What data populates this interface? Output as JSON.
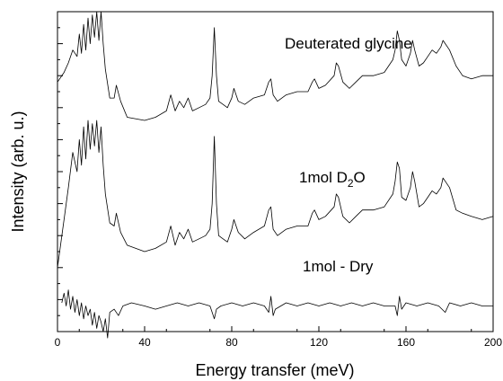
{
  "chart_data": {
    "type": "line",
    "title": "",
    "xlabel": "Energy transfer (meV)",
    "ylabel": "Intensity (arb. u.)",
    "xlim": [
      0,
      200
    ],
    "ylim": [
      0,
      100
    ],
    "xticks": [
      0,
      40,
      80,
      120,
      160,
      200
    ],
    "y_ticks_labeled": false,
    "grid": false,
    "legend": "none",
    "annotations": {
      "top": "Deuterated glycine",
      "middle_prefix": "1mol D",
      "middle_sub": "2",
      "middle_suffix": "O",
      "bottom": "1mol - Dry"
    },
    "series": [
      {
        "x": [
          0,
          3,
          5,
          7,
          9,
          10,
          11,
          12,
          13,
          14,
          15,
          16,
          17,
          18,
          19,
          20,
          21,
          22,
          24,
          26,
          27,
          29,
          32,
          40,
          45,
          50,
          52,
          54,
          56,
          58,
          60,
          62,
          65,
          68,
          70,
          71,
          72,
          73,
          74,
          76,
          78,
          80,
          81,
          83,
          86,
          90,
          95,
          97,
          98,
          99,
          101,
          105,
          110,
          115,
          117,
          118,
          120,
          123,
          127,
          128,
          129,
          131,
          134,
          137,
          140,
          145,
          150,
          154,
          155,
          156,
          157,
          158,
          160,
          162,
          163,
          164,
          166,
          168,
          170,
          172,
          174,
          176,
          177,
          178,
          180,
          183,
          186,
          190,
          195,
          200
        ],
        "values": [
          78,
          81,
          84,
          88,
          86,
          93,
          87,
          96,
          88,
          98,
          90,
          99,
          92,
          100,
          91,
          100,
          90,
          82,
          73,
          73,
          77,
          72,
          67,
          66,
          67,
          69,
          74,
          69,
          72,
          70,
          73,
          69,
          70,
          71,
          73,
          80,
          95,
          80,
          72,
          71,
          70,
          73,
          76,
          72,
          71,
          73,
          74,
          78,
          79,
          74,
          72,
          74,
          75,
          75,
          78,
          79,
          76,
          77,
          80,
          84,
          83,
          78,
          76,
          78,
          80,
          80,
          81,
          85,
          88,
          94,
          91,
          85,
          83,
          87,
          91,
          88,
          83,
          84,
          86,
          88,
          87,
          89,
          91,
          90,
          88,
          83,
          80,
          79,
          80,
          80
        ]
      },
      {
        "x": [
          0,
          3,
          5,
          7,
          9,
          10,
          11,
          12,
          13,
          14,
          15,
          16,
          17,
          18,
          19,
          20,
          21,
          22,
          24,
          26,
          27,
          29,
          32,
          40,
          45,
          50,
          52,
          54,
          56,
          58,
          60,
          62,
          65,
          68,
          70,
          71,
          72,
          73,
          74,
          76,
          78,
          80,
          81,
          83,
          86,
          90,
          95,
          97,
          98,
          99,
          101,
          105,
          110,
          115,
          117,
          118,
          120,
          123,
          127,
          128,
          129,
          131,
          134,
          137,
          140,
          145,
          150,
          154,
          155,
          156,
          157,
          158,
          160,
          162,
          163,
          164,
          166,
          168,
          170,
          172,
          174,
          176,
          177,
          178,
          180,
          183,
          186,
          190,
          195,
          200
        ],
        "values": [
          20,
          35,
          45,
          56,
          50,
          60,
          52,
          64,
          54,
          66,
          57,
          65,
          58,
          66,
          56,
          64,
          52,
          43,
          34,
          33,
          37,
          31,
          27,
          25,
          26,
          28,
          33,
          27,
          31,
          29,
          32,
          28,
          29,
          30,
          32,
          40,
          61,
          40,
          30,
          29,
          28,
          32,
          35,
          31,
          29,
          31,
          33,
          38,
          39,
          32,
          30,
          32,
          33,
          33,
          37,
          38,
          35,
          36,
          39,
          43,
          42,
          36,
          34,
          36,
          38,
          38,
          39,
          43,
          47,
          53,
          51,
          42,
          41,
          45,
          50,
          47,
          39,
          40,
          42,
          44,
          43,
          45,
          48,
          47,
          45,
          38,
          37,
          36,
          35,
          36
        ]
      },
      {
        "x": [
          2,
          3,
          4,
          5,
          6,
          7,
          8,
          9,
          10,
          11,
          12,
          13,
          14,
          15,
          16,
          17,
          18,
          19,
          20,
          21,
          22,
          23,
          24,
          26,
          28,
          30,
          34,
          40,
          45,
          50,
          55,
          60,
          65,
          70,
          71,
          72,
          73,
          75,
          80,
          85,
          90,
          95,
          97,
          98,
          99,
          100,
          105,
          110,
          115,
          120,
          125,
          130,
          135,
          140,
          145,
          150,
          155,
          156,
          157,
          158,
          160,
          165,
          170,
          175,
          178,
          180,
          185,
          190,
          195,
          200
        ],
        "values": [
          9,
          12,
          8,
          13,
          7,
          11,
          6,
          10,
          5,
          9,
          4,
          8,
          5,
          7,
          2,
          6,
          1,
          5,
          3,
          0,
          4,
          -2,
          6,
          7,
          5,
          8,
          9,
          8,
          7,
          8,
          9,
          8,
          9,
          8,
          6,
          4,
          7,
          8,
          9,
          8,
          9,
          8,
          6,
          11,
          5,
          7,
          9,
          8,
          9,
          8,
          9,
          8,
          9,
          8,
          9,
          8,
          8,
          5,
          11,
          7,
          9,
          8,
          9,
          8,
          6,
          9,
          8,
          9,
          8,
          8
        ]
      }
    ]
  }
}
